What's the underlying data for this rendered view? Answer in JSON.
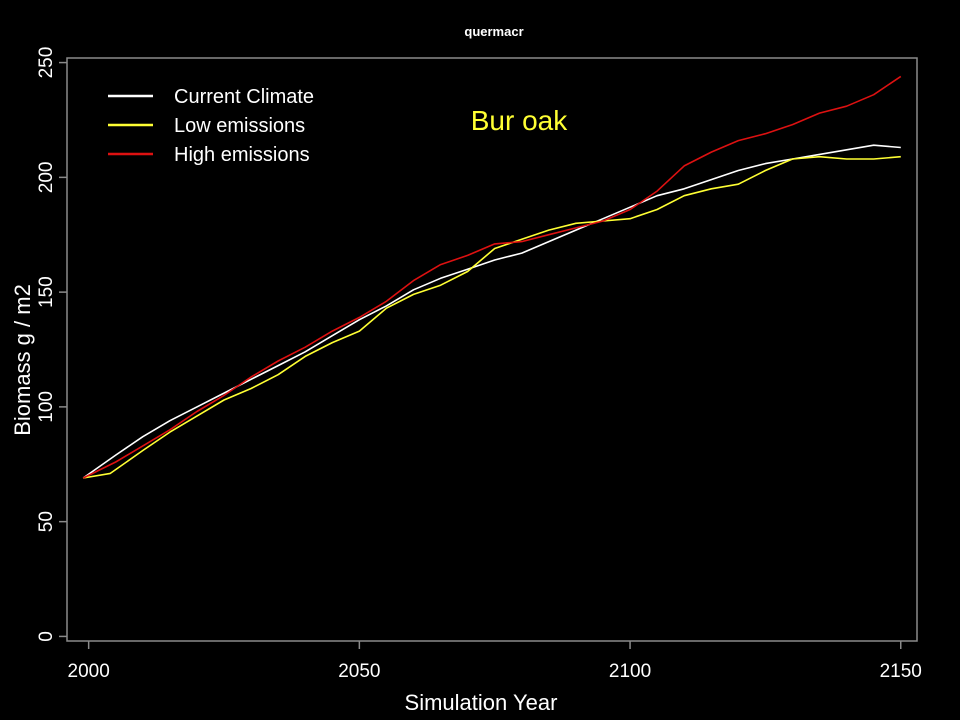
{
  "chart_data": {
    "type": "line",
    "title": "quermacr",
    "xlabel": "Simulation Year",
    "ylabel": "Biomass g / m2",
    "xlim": [
      1996,
      2153
    ],
    "ylim": [
      -2,
      252
    ],
    "xticks": [
      2000,
      2050,
      2100,
      2150
    ],
    "yticks": [
      0,
      50,
      100,
      150,
      200,
      250
    ],
    "grid": false,
    "legend_position": "top-left",
    "annotation": {
      "text": "Bur oak",
      "color": "#ffff33"
    },
    "background": "#000000",
    "series": [
      {
        "name": "Current Climate",
        "color": "#ffffff",
        "x": [
          1999,
          2005,
          2010,
          2015,
          2020,
          2025,
          2030,
          2035,
          2040,
          2045,
          2050,
          2055,
          2060,
          2065,
          2070,
          2075,
          2080,
          2085,
          2090,
          2095,
          2100,
          2105,
          2110,
          2115,
          2120,
          2125,
          2130,
          2135,
          2140,
          2145,
          2150
        ],
        "y": [
          69,
          79,
          87,
          94,
          100,
          106,
          112,
          118,
          124,
          131,
          138,
          144,
          151,
          156,
          160,
          164,
          167,
          172,
          177,
          182,
          187,
          192,
          195,
          199,
          203,
          206,
          208,
          210,
          212,
          214,
          213
        ]
      },
      {
        "name": "Low emissions",
        "color": "#ffff33",
        "x": [
          1999,
          2004,
          2010,
          2015,
          2020,
          2025,
          2030,
          2035,
          2040,
          2045,
          2050,
          2055,
          2060,
          2065,
          2070,
          2075,
          2080,
          2085,
          2090,
          2095,
          2100,
          2105,
          2110,
          2115,
          2120,
          2125,
          2130,
          2135,
          2140,
          2145,
          2150
        ],
        "y": [
          69,
          71,
          81,
          89,
          96,
          103,
          108,
          114,
          122,
          128,
          133,
          143,
          149,
          153,
          159,
          169,
          173,
          177,
          180,
          181,
          182,
          186,
          192,
          195,
          197,
          203,
          208,
          209,
          208,
          208,
          209
        ]
      },
      {
        "name": "High emissions",
        "color": "#dd1111",
        "x": [
          1999,
          2005,
          2010,
          2015,
          2020,
          2025,
          2030,
          2035,
          2040,
          2045,
          2050,
          2055,
          2060,
          2065,
          2070,
          2075,
          2080,
          2085,
          2090,
          2095,
          2100,
          2105,
          2110,
          2115,
          2120,
          2125,
          2130,
          2135,
          2140,
          2145,
          2150
        ],
        "y": [
          69,
          76,
          83,
          90,
          98,
          105,
          113,
          120,
          126,
          133,
          139,
          146,
          155,
          162,
          166,
          171,
          172,
          175,
          178,
          181,
          186,
          194,
          205,
          211,
          216,
          219,
          223,
          228,
          231,
          236,
          244
        ]
      }
    ]
  }
}
